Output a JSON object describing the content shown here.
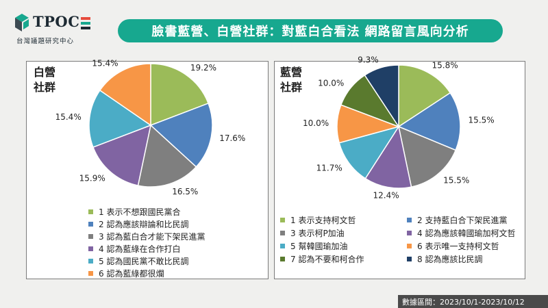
{
  "logo": {
    "brand": "TPOC",
    "subtitle": "台灣議題研究中心"
  },
  "title": "臉書藍營、白營社群：對藍白合看法 網路留言風向分析",
  "footer": "數據區間：2023/10/1-2023/10/12",
  "colors": {
    "accent": "#17a88f"
  },
  "chart_data": [
    {
      "type": "pie",
      "title": "白營\n社群",
      "categories": [
        "1 表示不想跟國民黨合",
        "2 認為應該辯論和比民調",
        "3 認為藍白合才能下架民進黨",
        "4 認為藍綠在合作打白",
        "5 認為國民黨不敢比民調",
        "6 認為藍綠都很爛"
      ],
      "values": [
        19.2,
        17.6,
        16.5,
        15.9,
        15.4,
        15.4
      ],
      "value_labels": [
        "19.2%",
        "17.6%",
        "16.5%",
        "15.9%",
        "15.4%",
        "15.4%"
      ],
      "colors": [
        "#9bbb59",
        "#4f81bd",
        "#7f7f7f",
        "#8064a2",
        "#4bacc6",
        "#f79646"
      ]
    },
    {
      "type": "pie",
      "title": "藍營\n社群",
      "categories": [
        "1 表示支持柯文哲",
        "2 支持藍白合下架民進黨",
        "3 表示柯P加油",
        "4 認為應該韓國瑜加柯文哲",
        "5 幫韓國瑜加油",
        "6 表示唯一支持柯文哲",
        "7 認為不要和柯合作",
        "8 認為應該比民調"
      ],
      "values": [
        15.8,
        15.5,
        15.5,
        12.4,
        11.7,
        10.0,
        10.0,
        9.3
      ],
      "value_labels": [
        "15.8%",
        "15.5%",
        "15.5%",
        "12.4%",
        "11.7%",
        "10.0%",
        "10.0%",
        "9.3%"
      ],
      "colors": [
        "#9bbb59",
        "#4f81bd",
        "#7f7f7f",
        "#8064a2",
        "#4bacc6",
        "#f79646",
        "#5a7a2e",
        "#1f3f66"
      ]
    }
  ]
}
